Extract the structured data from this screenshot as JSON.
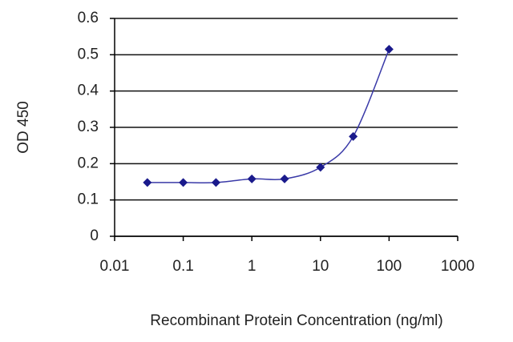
{
  "chart_data": {
    "type": "line",
    "xlabel": "Recombinant Protein Concentration (ng/ml)",
    "ylabel": "OD 450",
    "x": [
      0.03,
      0.1,
      0.3,
      1,
      3,
      10,
      30,
      100
    ],
    "series": [
      {
        "color": "#1a1a8c",
        "values": [
          0.148,
          0.148,
          0.148,
          0.158,
          0.158,
          0.19,
          0.275,
          0.515
        ]
      }
    ],
    "xscale": "log",
    "xlim": [
      0.01,
      1000
    ],
    "xticks": [
      0.01,
      0.1,
      1,
      10,
      100,
      1000
    ],
    "ylim": [
      0,
      0.6
    ],
    "yticks": [
      0,
      0.1,
      0.2,
      0.3,
      0.4,
      0.5,
      0.6
    ],
    "grid": true
  }
}
